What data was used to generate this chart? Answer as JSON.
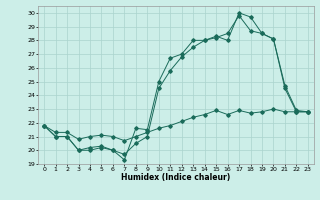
{
  "xlabel": "Humidex (Indice chaleur)",
  "xlim": [
    -0.5,
    23.5
  ],
  "ylim": [
    19,
    30.5
  ],
  "yticks": [
    19,
    20,
    21,
    22,
    23,
    24,
    25,
    26,
    27,
    28,
    29,
    30
  ],
  "xticks": [
    0,
    1,
    2,
    3,
    4,
    5,
    6,
    7,
    8,
    9,
    10,
    11,
    12,
    13,
    14,
    15,
    16,
    17,
    18,
    19,
    20,
    21,
    22,
    23
  ],
  "bg_color": "#cceee8",
  "line_color": "#1a6b5a",
  "grid_color": "#aad4ce",
  "line1_y": [
    21.8,
    21.0,
    21.0,
    20.0,
    20.0,
    20.2,
    20.0,
    19.3,
    21.6,
    21.5,
    25.0,
    26.7,
    27.0,
    28.0,
    28.0,
    28.3,
    28.0,
    30.0,
    29.7,
    28.5,
    28.1,
    24.5,
    22.8,
    22.8
  ],
  "line2_y": [
    21.8,
    21.0,
    21.0,
    20.0,
    20.2,
    20.3,
    20.0,
    19.7,
    20.5,
    21.0,
    24.5,
    25.8,
    26.8,
    27.5,
    28.0,
    28.2,
    28.5,
    29.8,
    28.7,
    28.5,
    28.1,
    24.7,
    22.9,
    22.8
  ],
  "line3_y": [
    21.8,
    21.3,
    21.3,
    20.8,
    21.0,
    21.1,
    21.0,
    20.7,
    21.0,
    21.3,
    21.6,
    21.8,
    22.1,
    22.4,
    22.6,
    22.9,
    22.6,
    22.9,
    22.7,
    22.8,
    23.0,
    22.8,
    22.8,
    22.8
  ]
}
